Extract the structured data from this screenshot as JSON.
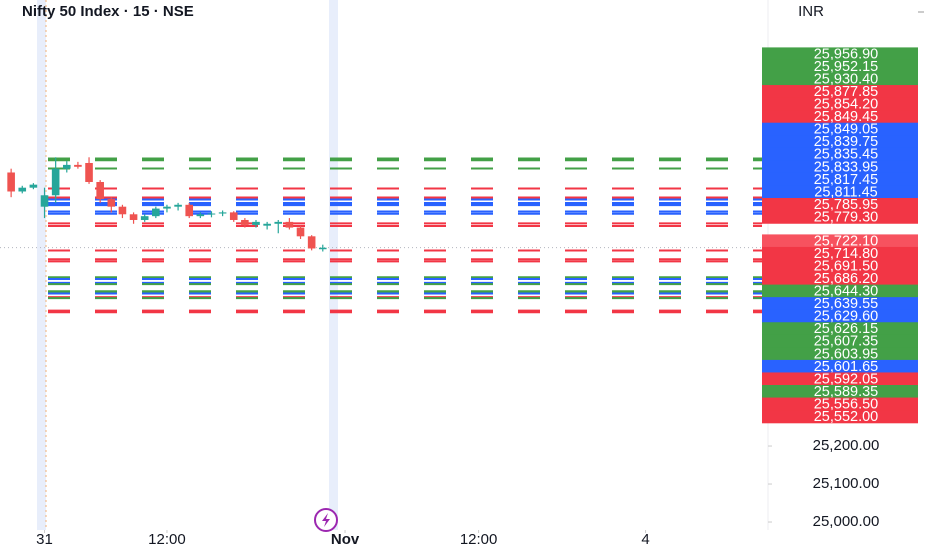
{
  "chart_data": {
    "type": "candlestick",
    "title": "Nifty 50 Index · 15 · NSE",
    "currency": "INR",
    "ylim": [
      24979,
      26374
    ],
    "yticks": [
      {
        "value": 25200,
        "label": "25,200.00"
      },
      {
        "value": 25100,
        "label": "25,100.00"
      },
      {
        "value": 25000,
        "label": "25,000.00"
      }
    ],
    "xlim": [
      -4,
      65
    ],
    "xticks": [
      {
        "value": 0,
        "label": "31"
      },
      {
        "value": 11,
        "label": "12:00"
      },
      {
        "value": 27,
        "label": "Nov"
      },
      {
        "value": 39,
        "label": "12:00"
      },
      {
        "value": 54,
        "label": "4"
      }
    ],
    "up_color": "#26a69a",
    "down_color": "#ef5350",
    "x": [
      -3,
      -2,
      -1,
      0,
      1,
      2,
      3,
      4,
      5,
      6,
      7,
      8,
      9,
      10,
      11,
      12,
      13,
      14,
      15,
      16,
      17,
      18,
      19,
      20,
      21,
      22,
      23,
      24,
      25
    ],
    "open": [
      25920,
      25870,
      25880,
      25830,
      25860,
      25930,
      25940,
      25945,
      25895,
      25850,
      25830,
      25810,
      25795,
      25805,
      25825,
      25830,
      25835,
      25805,
      25810,
      25812,
      25815,
      25795,
      25782,
      25780,
      25785,
      25790,
      25775,
      25752,
      25718
    ],
    "high": [
      25930,
      25885,
      25892,
      25880,
      25960,
      25950,
      25948,
      25960,
      25900,
      25855,
      25835,
      25815,
      25810,
      25830,
      25835,
      25840,
      25840,
      25815,
      25818,
      25820,
      25818,
      25800,
      25795,
      25790,
      25795,
      25800,
      25780,
      25755,
      25730
    ],
    "low": [
      25855,
      25865,
      25876,
      25800,
      25840,
      25920,
      25930,
      25890,
      25840,
      25815,
      25800,
      25785,
      25790,
      25800,
      25815,
      25820,
      25800,
      25800,
      25802,
      25805,
      25790,
      25775,
      25775,
      25770,
      25760,
      25770,
      25745,
      25715,
      25712
    ],
    "close": [
      25870,
      25880,
      25888,
      25860,
      25930,
      25940,
      25935,
      25895,
      25850,
      25830,
      25810,
      25795,
      25805,
      25825,
      25830,
      25835,
      25805,
      25810,
      25812,
      25815,
      25795,
      25782,
      25790,
      25785,
      25790,
      25775,
      25752,
      25720,
      25722
    ],
    "current": 14,
    "levels": [
      {
        "value": 25956.9,
        "label": "25,956.90",
        "color": "#43a047"
      },
      {
        "value": 25952.15,
        "label": "25,952.15",
        "color": "#43a047"
      },
      {
        "value": 25930.4,
        "label": "25,930.40",
        "color": "#43a047"
      },
      {
        "value": 25877.85,
        "label": "25,877.85",
        "color": "#f23645"
      },
      {
        "value": 25854.2,
        "label": "25,854.20",
        "color": "#f23645"
      },
      {
        "value": 25849.45,
        "label": "25,849.45",
        "color": "#f23645"
      },
      {
        "value": 25849.05,
        "label": "25,849.05",
        "color": "#2962ff"
      },
      {
        "value": 25839.75,
        "label": "25,839.75",
        "color": "#2962ff"
      },
      {
        "value": 25835.45,
        "label": "25,835.45",
        "color": "#2962ff"
      },
      {
        "value": 25833.95,
        "label": "25,833.95",
        "color": "#2962ff"
      },
      {
        "value": 25817.45,
        "label": "25,817.45",
        "color": "#2962ff"
      },
      {
        "value": 25811.45,
        "label": "25,811.45",
        "color": "#2962ff"
      },
      {
        "value": 25785.95,
        "label": "25,785.95",
        "color": "#f23645"
      },
      {
        "value": 25779.3,
        "label": "25,779.30",
        "color": "#f23645"
      },
      {
        "value": 25722.1,
        "label": "25,722.10",
        "color": "#f7525f"
      },
      {
        "value": 25714.8,
        "label": "25,714.80",
        "color": "#f23645"
      },
      {
        "value": 25691.5,
        "label": "25,691.50",
        "color": "#f23645"
      },
      {
        "value": 25686.2,
        "label": "25,686.20",
        "color": "#f23645"
      },
      {
        "value": 25644.3,
        "label": "25,644.30",
        "color": "#43a047"
      },
      {
        "value": 25639.55,
        "label": "25,639.55",
        "color": "#2962ff"
      },
      {
        "value": 25629.6,
        "label": "25,629.60",
        "color": "#2962ff"
      },
      {
        "value": 25626.15,
        "label": "25,626.15",
        "color": "#43a047"
      },
      {
        "value": 25607.35,
        "label": "25,607.35",
        "color": "#43a047"
      },
      {
        "value": 25603.95,
        "label": "25,603.95",
        "color": "#43a047"
      },
      {
        "value": 25601.65,
        "label": "25,601.65",
        "color": "#2962ff"
      },
      {
        "value": 25592.05,
        "label": "25,592.05",
        "color": "#f23645"
      },
      {
        "value": 25589.35,
        "label": "25,589.35",
        "color": "#43a047"
      },
      {
        "value": 25556.5,
        "label": "25,556.50",
        "color": "#f23645"
      },
      {
        "value": 25552.0,
        "label": "25,552.00",
        "color": "#f23645"
      }
    ]
  }
}
